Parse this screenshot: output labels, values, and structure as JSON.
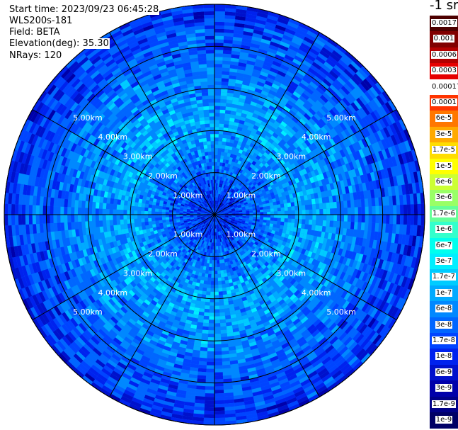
{
  "header": {
    "start_time": "Start time: 2023/09/23 06:45:28",
    "instrument": "WLS200s-181",
    "field": "Field: BETA",
    "elevation": "Elevation(deg): 35.30",
    "nrays": "NRays: 120"
  },
  "colorbar": {
    "unit_label": "-1 sr",
    "labels": [
      "0.0017",
      "0.001",
      "0.0006",
      "0.0003",
      "0.00017",
      "0.0001",
      "6e-5",
      "3e-5",
      "1.7e-5",
      "1e-5",
      "6e-6",
      "3e-6",
      "1.7e-6",
      "1e-6",
      "6e-7",
      "3e-7",
      "1.7e-7",
      "1e-7",
      "6e-8",
      "3e-8",
      "1.7e-8",
      "1e-8",
      "6e-9",
      "3e-9",
      "1.7e-9",
      "1e-9"
    ],
    "colors": [
      "#4d0000",
      "#800000",
      "#b30000",
      "#e60000",
      "#ffffff",
      "#ff3300",
      "#ff7700",
      "#ffaa00",
      "#ffdd00",
      "#ffff00",
      "#ccff33",
      "#99ff66",
      "#66ff99",
      "#33ffcc",
      "#00ffee",
      "#00eeff",
      "#00ccff",
      "#00aaff",
      "#0088ff",
      "#0066ff",
      "#0044ff",
      "#0022ee",
      "#0011cc",
      "#0000aa",
      "#000088",
      "#000066"
    ]
  },
  "chart_data": {
    "type": "heatmap",
    "projection": "polar PPI",
    "field": "BETA",
    "elevation_deg": 35.3,
    "n_rays": 120,
    "range_rings_km": [
      1,
      2,
      3,
      4,
      5
    ],
    "range_ring_labels": [
      "1.00km",
      "2.00km",
      "3.00km",
      "4.00km",
      "5.00km"
    ],
    "max_range_km": 5.0,
    "azimuth_spokes_deg": [
      0,
      30,
      60,
      90,
      120,
      150,
      180,
      210,
      240,
      270,
      300,
      330
    ],
    "value_scale": "log",
    "value_range": [
      1e-09,
      0.0017
    ],
    "radial_profile": [
      {
        "range_km": 0.3,
        "value": 1e-08,
        "color_class": "dark blue"
      },
      {
        "range_km": 1.0,
        "value": 3e-08,
        "color_class": "blue"
      },
      {
        "range_km": 2.0,
        "value": 1e-07,
        "color_class": "light blue"
      },
      {
        "range_km": 3.0,
        "value": 6e-08,
        "color_class": "blue"
      },
      {
        "range_km": 4.5,
        "value": 1.7e-08,
        "color_class": "blue"
      },
      {
        "range_km": 5.0,
        "value": 1e-08,
        "color_class": "dark blue"
      }
    ]
  }
}
